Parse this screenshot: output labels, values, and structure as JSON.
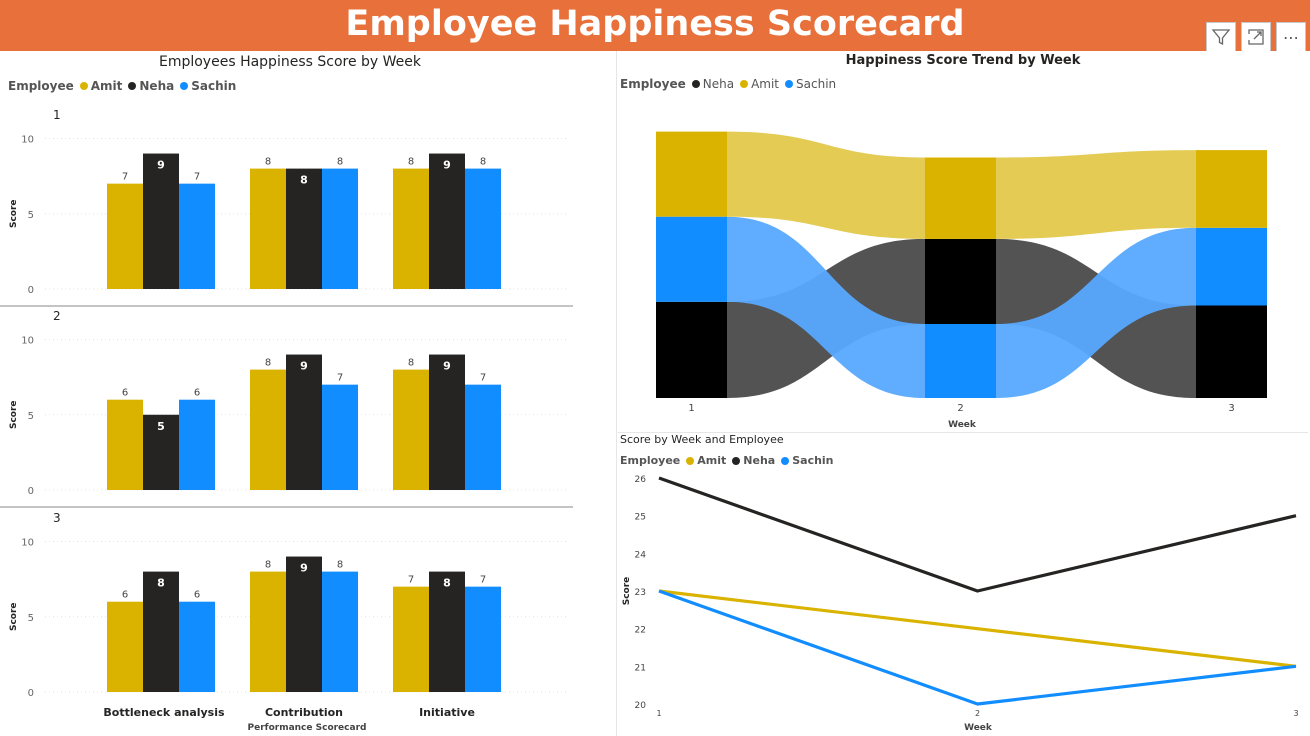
{
  "header": {
    "title": "Employee Happiness Scorecard"
  },
  "toolbar": {
    "filter_icon": "filter-icon",
    "focus_icon": "focus-mode-icon",
    "more_icon": "more-options-icon",
    "more_label": "⋯"
  },
  "colors": {
    "header": "#E8703A",
    "Amit": "#D9B300",
    "Neha": "#252423",
    "Sachin": "#118DFF"
  },
  "chart_data": [
    {
      "type": "bar",
      "title": "Employees Happiness Score by Week",
      "legend_title": "Employee",
      "legend": [
        "Amit",
        "Neha",
        "Sachin"
      ],
      "legend_position": "top-left",
      "xlabel": "Performance Scorecard",
      "ylabel": "Score",
      "categories": [
        "Bottleneck analysis",
        "Contribution",
        "Initiative"
      ],
      "ylim": [
        0,
        10
      ],
      "yticks": [
        0,
        5,
        10
      ],
      "facets": [
        {
          "label": "1",
          "series": [
            {
              "name": "Amit",
              "values": [
                7,
                8,
                8
              ]
            },
            {
              "name": "Neha",
              "values": [
                9,
                8,
                9
              ]
            },
            {
              "name": "Sachin",
              "values": [
                7,
                8,
                8
              ]
            }
          ]
        },
        {
          "label": "2",
          "series": [
            {
              "name": "Amit",
              "values": [
                6,
                8,
                8
              ]
            },
            {
              "name": "Neha",
              "values": [
                5,
                9,
                9
              ]
            },
            {
              "name": "Sachin",
              "values": [
                6,
                7,
                7
              ]
            }
          ]
        },
        {
          "label": "3",
          "series": [
            {
              "name": "Amit",
              "values": [
                6,
                8,
                7
              ]
            },
            {
              "name": "Neha",
              "values": [
                8,
                9,
                8
              ]
            },
            {
              "name": "Sachin",
              "values": [
                6,
                8,
                7
              ]
            }
          ]
        }
      ]
    },
    {
      "type": "area",
      "subtype": "ribbon",
      "title": "Happiness Score Trend by Week",
      "legend_title": "Employee",
      "legend": [
        "Neha",
        "Amit",
        "Sachin"
      ],
      "legend_position": "top-left",
      "xlabel": "Week",
      "categories": [
        "1",
        "2",
        "3"
      ],
      "series": [
        {
          "name": "Amit",
          "values": [
            23,
            22,
            21
          ]
        },
        {
          "name": "Neha",
          "values": [
            26,
            23,
            25
          ]
        },
        {
          "name": "Sachin",
          "values": [
            23,
            20,
            21
          ]
        }
      ],
      "stack_order_bottom_to_top": [
        [
          "Neha",
          "Sachin",
          "Amit"
        ],
        [
          "Sachin",
          "Neha",
          "Amit"
        ],
        [
          "Neha",
          "Sachin",
          "Amit"
        ]
      ]
    },
    {
      "type": "line",
      "title": "Score by Week and Employee",
      "legend_title": "Employee",
      "legend": [
        "Amit",
        "Neha",
        "Sachin"
      ],
      "legend_position": "top-left",
      "xlabel": "Week",
      "ylabel": "Score",
      "x": [
        1,
        2,
        3
      ],
      "ylim": [
        20,
        26
      ],
      "yticks": [
        20,
        21,
        22,
        23,
        24,
        25,
        26
      ],
      "series": [
        {
          "name": "Amit",
          "values": [
            23,
            22,
            21
          ]
        },
        {
          "name": "Neha",
          "values": [
            26,
            23,
            25
          ]
        },
        {
          "name": "Sachin",
          "values": [
            23,
            20,
            21
          ]
        }
      ]
    }
  ]
}
